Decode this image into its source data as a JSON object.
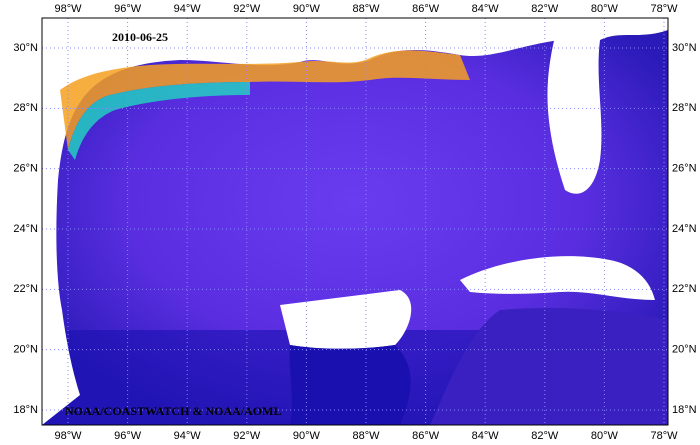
{
  "date": "2010-06-25",
  "credit": "NOAA/COASTWATCH & NOAA/AOML",
  "longitude_labels": [
    "98°W",
    "96°W",
    "94°W",
    "92°W",
    "90°W",
    "88°W",
    "86°W",
    "84°W",
    "82°W",
    "80°W",
    "78°W"
  ],
  "latitude_labels": [
    "30°N",
    "28°N",
    "26°N",
    "24°N",
    "22°N",
    "20°N",
    "18°N"
  ]
}
